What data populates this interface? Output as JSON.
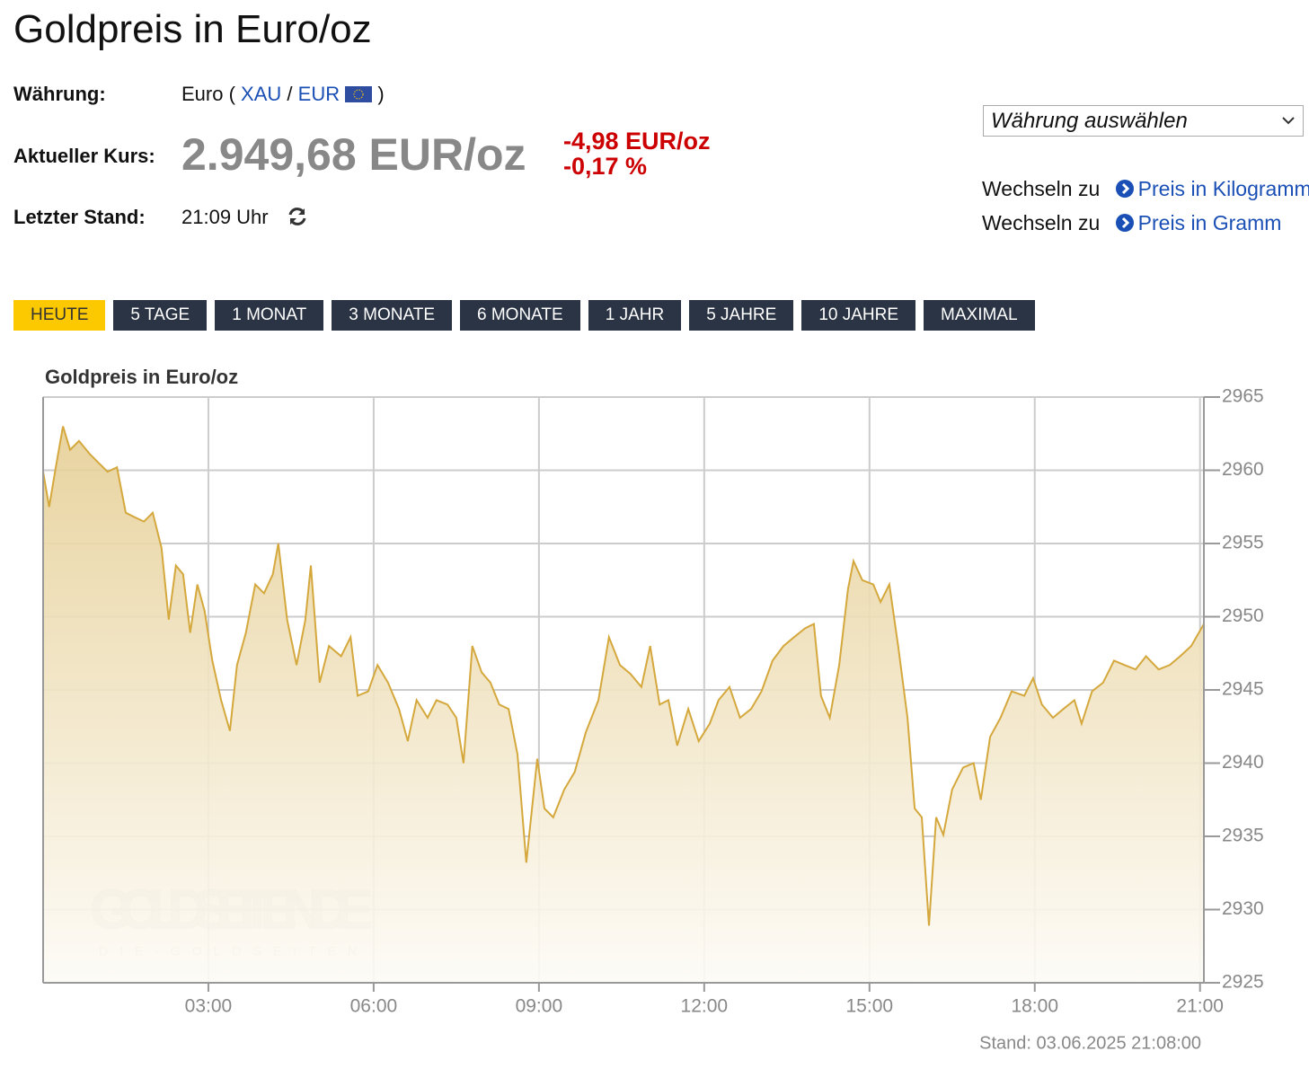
{
  "header": {
    "title": "Goldpreis in Euro/oz",
    "currency_label": "Währung:",
    "currency_text": "Euro (",
    "xau": "XAU",
    "slash": "/",
    "eur": "EUR",
    "close": ")",
    "price_label": "Aktueller Kurs:",
    "price": "2.949,68 EUR/oz",
    "change_abs": "-4,98 EUR/oz",
    "change_pct": "-0,17 %",
    "updated_label": "Letzter Stand:",
    "updated": "21:09 Uhr"
  },
  "sidebar": {
    "select": "Währung auswählen",
    "links": [
      {
        "prefix": "Wechseln zu",
        "label": "Preis in Kilogramm"
      },
      {
        "prefix": "Wechseln zu",
        "label": "Preis in Gramm"
      }
    ]
  },
  "tabs": {
    "items": [
      "HEUTE",
      "5 TAGE",
      "1 MONAT",
      "3 MONATE",
      "6 MONATE",
      "1 JAHR",
      "5 JAHRE",
      "10 JAHRE",
      "MAXIMAL"
    ],
    "active": 0
  },
  "chart_data": {
    "type": "area",
    "title": "Goldpreis in Euro/oz",
    "watermark": "GOLDSEITEN.DE",
    "watermark_sub": "DIE-GOLDSEITEN",
    "stand": "Stand: 03.06.2025 21:08:00",
    "x": [
      0,
      0.11,
      0.23,
      0.36,
      0.49,
      0.65,
      0.85,
      1.01,
      1.17,
      1.34,
      1.5,
      1.66,
      1.83,
      1.99,
      2.15,
      2.28,
      2.41,
      2.54,
      2.67,
      2.8,
      2.93,
      3.07,
      3.23,
      3.39,
      3.52,
      3.68,
      3.85,
      4.01,
      4.17,
      4.27,
      4.43,
      4.6,
      4.76,
      4.86,
      5.02,
      5.19,
      5.41,
      5.58,
      5.71,
      5.9,
      6.07,
      6.26,
      6.46,
      6.62,
      6.78,
      6.98,
      7.14,
      7.34,
      7.5,
      7.63,
      7.79,
      7.96,
      8.12,
      8.28,
      8.45,
      8.61,
      8.77,
      8.97,
      9.1,
      9.26,
      9.46,
      9.65,
      9.85,
      10.08,
      10.27,
      10.47,
      10.66,
      10.86,
      11.02,
      11.19,
      11.35,
      11.51,
      11.71,
      11.9,
      12.1,
      12.26,
      12.46,
      12.65,
      12.85,
      13.04,
      13.24,
      13.44,
      13.63,
      13.83,
      13.99,
      14.12,
      14.28,
      14.45,
      14.61,
      14.71,
      14.87,
      15.07,
      15.2,
      15.36,
      15.52,
      15.69,
      15.82,
      15.95,
      16.08,
      16.21,
      16.34,
      16.5,
      16.7,
      16.89,
      17.02,
      17.19,
      17.38,
      17.58,
      17.81,
      17.97,
      18.13,
      18.33,
      18.52,
      18.72,
      18.85,
      19.04,
      19.24,
      19.44,
      19.63,
      19.83,
      20.02,
      20.25,
      20.45,
      20.64,
      20.84,
      21.07
    ],
    "series": [
      {
        "color": "#d4a83c",
        "values": [
          2959.9,
          2957.5,
          2960.2,
          2963,
          2961.4,
          2962,
          2961.1,
          2960.5,
          2959.9,
          2960.2,
          2957.1,
          2956.8,
          2956.5,
          2957.1,
          2954.7,
          2949.8,
          2953.5,
          2952.9,
          2948.9,
          2952.2,
          2950.4,
          2947,
          2944.3,
          2942.2,
          2946.7,
          2948.9,
          2952.2,
          2951.6,
          2952.9,
          2955,
          2949.8,
          2946.7,
          2949.8,
          2953.5,
          2945.5,
          2948,
          2947.3,
          2948.6,
          2944.6,
          2944.9,
          2946.7,
          2945.5,
          2943.7,
          2941.5,
          2944.3,
          2943.1,
          2944.3,
          2944,
          2943.1,
          2940,
          2948,
          2946.2,
          2945.5,
          2944,
          2943.7,
          2940.6,
          2933.2,
          2940.3,
          2936.9,
          2936.3,
          2938.2,
          2939.4,
          2942.1,
          2944.3,
          2948.6,
          2946.7,
          2946.1,
          2945.2,
          2948,
          2944,
          2944.3,
          2941.2,
          2943.7,
          2941.5,
          2942.7,
          2944.3,
          2945.2,
          2943.1,
          2943.7,
          2944.9,
          2947,
          2948,
          2948.6,
          2949.2,
          2949.5,
          2944.6,
          2943.1,
          2946.7,
          2951.9,
          2953.8,
          2952.5,
          2952.2,
          2951,
          2952.2,
          2948,
          2943.1,
          2936.9,
          2936.3,
          2928.9,
          2936.3,
          2935.1,
          2938.2,
          2939.7,
          2940,
          2937.5,
          2941.8,
          2943.1,
          2944.9,
          2944.6,
          2945.8,
          2944,
          2943.1,
          2943.7,
          2944.3,
          2942.7,
          2944.9,
          2945.5,
          2947,
          2946.7,
          2946.4,
          2947.3,
          2946.4,
          2946.7,
          2947.3,
          2948,
          2949.5
        ]
      }
    ],
    "xlim": [
      0,
      21.07
    ],
    "xticks": [
      {
        "value": 3,
        "label": "03:00"
      },
      {
        "value": 6,
        "label": "06:00"
      },
      {
        "value": 9,
        "label": "09:00"
      },
      {
        "value": 12,
        "label": "12:00"
      },
      {
        "value": 15,
        "label": "15:00"
      },
      {
        "value": 18,
        "label": "18:00"
      },
      {
        "value": 21,
        "label": "21:00"
      }
    ],
    "ylim": [
      2925,
      2965
    ],
    "yticks": [
      2925,
      2930,
      2935,
      2940,
      2945,
      2950,
      2955,
      2960,
      2965
    ],
    "grid": true
  }
}
